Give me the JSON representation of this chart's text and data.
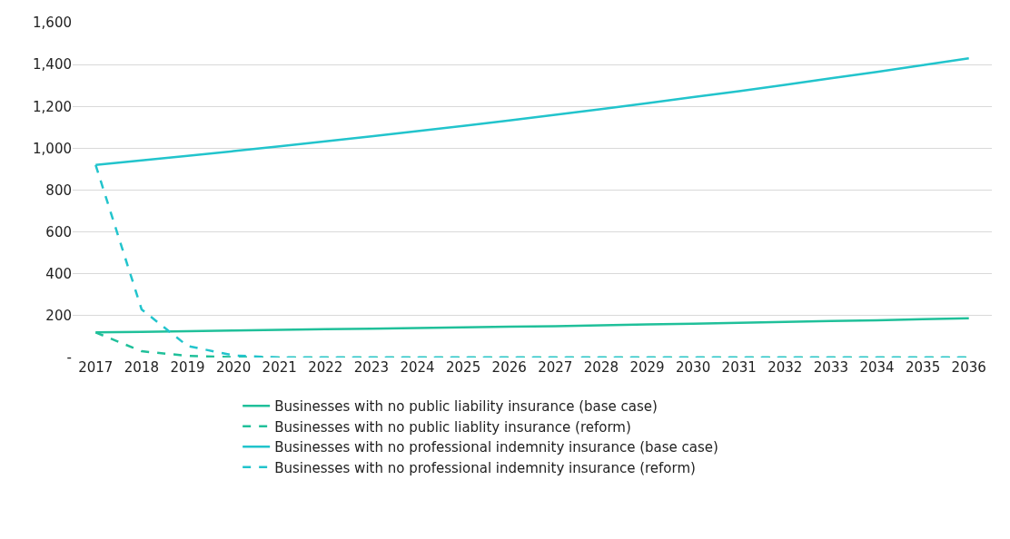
{
  "chart_data": {
    "type": "line",
    "categories": [
      "2017",
      "2018",
      "2019",
      "2020",
      "2021",
      "2022",
      "2023",
      "2024",
      "2025",
      "2026",
      "2027",
      "2028",
      "2029",
      "2030",
      "2031",
      "2032",
      "2033",
      "2034",
      "2035",
      "2036"
    ],
    "series": [
      {
        "name": "Businesses with no public liability insurance (base case)",
        "color": "#20c09a",
        "line_style": "solid",
        "values": [
          120,
          123,
          126,
          129,
          132,
          135,
          138,
          141,
          144,
          147,
          150,
          154,
          158,
          162,
          166,
          170,
          174,
          178,
          183,
          188
        ]
      },
      {
        "name": "Businesses with no public liablity insurance (reform)",
        "color": "#20c09a",
        "line_style": "dashed",
        "values": [
          120,
          30,
          8,
          2,
          0,
          0,
          0,
          0,
          0,
          0,
          0,
          0,
          0,
          0,
          0,
          0,
          0,
          0,
          0,
          0
        ]
      },
      {
        "name": "Businesses with no professional indemnity insurance (base case)",
        "color": "#22c4cc",
        "line_style": "solid",
        "values": [
          920,
          942,
          964,
          986,
          1009,
          1033,
          1057,
          1082,
          1107,
          1133,
          1160,
          1187,
          1215,
          1244,
          1273,
          1303,
          1334,
          1365,
          1397,
          1430
        ]
      },
      {
        "name": "Businesses with no professional indemnity insurance (reform)",
        "color": "#22c4cc",
        "line_style": "dashed",
        "values": [
          920,
          230,
          55,
          10,
          0,
          0,
          0,
          0,
          0,
          0,
          0,
          0,
          0,
          0,
          0,
          0,
          0,
          0,
          0,
          0
        ]
      }
    ],
    "ylim": [
      0,
      1600
    ],
    "yticks": [
      {
        "value": 0,
        "label": "-"
      },
      {
        "value": 200,
        "label": "200"
      },
      {
        "value": 400,
        "label": "400"
      },
      {
        "value": 600,
        "label": "600"
      },
      {
        "value": 800,
        "label": "800"
      },
      {
        "value": 1000,
        "label": "1,000"
      },
      {
        "value": 1200,
        "label": "1,200"
      },
      {
        "value": 1400,
        "label": "1,400"
      },
      {
        "value": 1600,
        "label": "1,600"
      }
    ],
    "grid": "y",
    "legend": "bottom",
    "marker": "none"
  }
}
